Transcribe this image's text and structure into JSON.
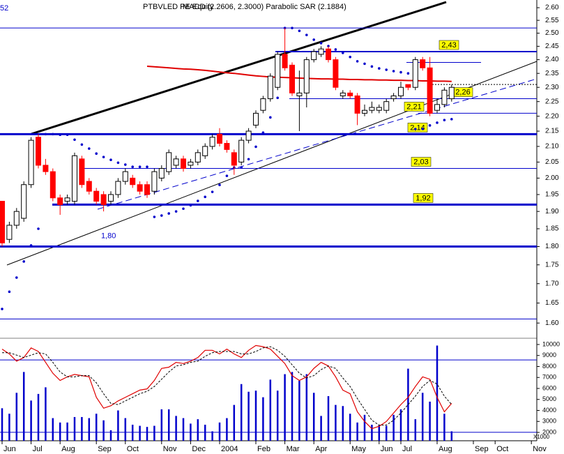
{
  "chart_data": {
    "type": "candlestick",
    "title": "PTBVLED PE Equity",
    "subtitle": "MACD (2.2606, 2.3000) Parabolic SAR (2.1884)",
    "corner_label": "52",
    "volume_unit": "X1000",
    "categories": [
      "Jun",
      null,
      null,
      null,
      "Jul",
      null,
      null,
      null,
      "Aug",
      null,
      null,
      null,
      null,
      "Sep",
      null,
      null,
      null,
      "Oct",
      null,
      null,
      null,
      null,
      "Nov",
      null,
      null,
      null,
      "Dec",
      null,
      null,
      null,
      "2004",
      null,
      null,
      null,
      null,
      "Feb",
      null,
      null,
      null,
      "Mar",
      null,
      null,
      null,
      "Apr",
      null,
      null,
      null,
      null,
      "May",
      null,
      null,
      null,
      "Jun",
      null,
      null,
      "Jul",
      null,
      null,
      null,
      null,
      "Aug",
      null,
      null,
      null,
      null,
      "Sep",
      null,
      null,
      "Oct",
      null,
      null,
      null,
      null,
      "Nov",
      null,
      null
    ],
    "open": [
      1.93,
      1.82,
      1.86,
      1.88,
      1.98,
      2.13,
      2.04,
      2.02,
      1.94,
      1.93,
      1.93,
      2.06,
      1.99,
      1.96,
      1.95,
      1.93,
      1.95,
      1.99,
      2.0,
      1.98,
      1.98,
      1.96,
      2.0,
      2.02,
      2.04,
      2.06,
      2.04,
      2.05,
      2.07,
      2.1,
      2.14,
      2.11,
      2.08,
      2.05,
      2.12,
      2.17,
      2.22,
      2.26,
      2.3,
      2.42,
      2.38,
      2.27,
      2.28,
      2.4,
      2.42,
      2.44,
      2.4,
      2.27,
      2.28,
      2.27,
      2.21,
      2.22,
      2.22,
      2.22,
      2.26,
      2.27,
      2.31,
      2.3,
      2.4,
      2.37,
      2.22,
      2.24,
      2.26,
      null,
      null,
      null,
      null,
      null,
      null,
      null,
      null,
      null,
      null,
      null,
      null,
      null
    ],
    "high": [
      1.93,
      1.87,
      1.91,
      1.99,
      2.13,
      2.14,
      2.06,
      2.03,
      1.95,
      1.95,
      2.08,
      2.07,
      2.0,
      1.97,
      1.96,
      1.96,
      2.0,
      2.03,
      2.01,
      1.99,
      1.99,
      2.03,
      2.04,
      2.09,
      2.07,
      2.07,
      2.06,
      2.09,
      2.11,
      2.14,
      2.16,
      2.12,
      2.09,
      2.13,
      2.16,
      2.22,
      2.27,
      2.35,
      2.43,
      2.52,
      2.39,
      2.36,
      2.41,
      2.44,
      2.45,
      2.45,
      2.41,
      2.29,
      2.29,
      2.28,
      2.24,
      2.25,
      2.24,
      2.26,
      2.28,
      2.32,
      2.31,
      2.41,
      2.41,
      2.41,
      2.26,
      2.3,
      2.31,
      null,
      null,
      null,
      null,
      null,
      null,
      null,
      null,
      null,
      null,
      null,
      null,
      null
    ],
    "low": [
      1.8,
      1.81,
      1.85,
      1.87,
      1.97,
      2.03,
      2.01,
      1.93,
      1.89,
      1.92,
      1.92,
      1.97,
      1.95,
      1.92,
      1.9,
      1.92,
      1.94,
      1.98,
      1.97,
      1.95,
      1.94,
      1.95,
      1.99,
      2.01,
      2.03,
      2.02,
      2.03,
      2.04,
      2.06,
      2.09,
      2.1,
      2.08,
      2.01,
      2.04,
      2.11,
      2.16,
      2.21,
      2.25,
      2.29,
      2.36,
      2.27,
      2.15,
      2.23,
      2.39,
      2.41,
      2.39,
      2.29,
      2.26,
      2.26,
      2.17,
      2.2,
      2.21,
      2.21,
      2.21,
      2.25,
      2.26,
      2.29,
      2.29,
      2.36,
      2.2,
      2.21,
      2.23,
      2.25,
      null,
      null,
      null,
      null,
      null,
      null,
      null,
      null,
      null,
      null,
      null,
      null,
      null
    ],
    "close": [
      1.81,
      1.86,
      1.9,
      1.98,
      2.12,
      2.04,
      2.02,
      1.94,
      1.92,
      1.94,
      2.07,
      1.98,
      1.96,
      1.93,
      1.92,
      1.95,
      1.99,
      2.02,
      1.98,
      1.96,
      1.95,
      2.02,
      2.03,
      2.08,
      2.06,
      2.03,
      2.05,
      2.08,
      2.1,
      2.13,
      2.11,
      2.09,
      2.04,
      2.12,
      2.15,
      2.21,
      2.26,
      2.34,
      2.42,
      2.37,
      2.28,
      2.28,
      2.4,
      2.43,
      2.44,
      2.4,
      2.3,
      2.28,
      2.27,
      2.21,
      2.22,
      2.23,
      2.23,
      2.25,
      2.27,
      2.3,
      2.3,
      2.4,
      2.37,
      2.21,
      2.24,
      2.29,
      2.3,
      null,
      null,
      null,
      null,
      null,
      null,
      null,
      null,
      null,
      null,
      null,
      null,
      null
    ],
    "up_color": "#ffffff",
    "down_color": "#ff0000",
    "sar": [
      1.635,
      1.679,
      1.716,
      1.759,
      1.803,
      1.85,
      2.14,
      2.14,
      2.138,
      2.138,
      2.122,
      2.106,
      2.093,
      2.077,
      2.066,
      2.057,
      2.048,
      2.042,
      2.035,
      2.035,
      2.035,
      1.884,
      1.888,
      1.894,
      1.9,
      1.908,
      1.918,
      1.931,
      1.943,
      1.958,
      1.979,
      2.007,
      2.033,
      2.033,
      2.059,
      2.099,
      2.145,
      2.196,
      2.263,
      2.52,
      2.52,
      2.509,
      2.493,
      2.475,
      2.462,
      2.451,
      2.438,
      2.425,
      2.41,
      2.394,
      2.385,
      2.375,
      2.368,
      2.363,
      2.358,
      2.354,
      2.35,
      2.157,
      2.157,
      2.169,
      2.178,
      2.187,
      2.19,
      null,
      null,
      null,
      null,
      null,
      null,
      null,
      null,
      null,
      null,
      null,
      null,
      null
    ],
    "sar_color": "#0000cc",
    "ma": [
      null,
      null,
      null,
      null,
      null,
      null,
      null,
      null,
      null,
      null,
      null,
      null,
      null,
      null,
      null,
      null,
      null,
      null,
      null,
      null,
      2.376,
      2.374,
      2.372,
      2.37,
      2.368,
      2.366,
      2.365,
      2.363,
      2.361,
      2.358,
      2.355,
      2.352,
      2.35,
      2.347,
      2.344,
      2.341,
      2.339,
      2.337,
      2.336,
      2.335,
      2.334,
      2.333,
      2.332,
      2.331,
      2.33,
      2.33,
      2.329,
      2.329,
      2.328,
      2.328,
      2.327,
      2.327,
      2.326,
      2.326,
      2.325,
      2.325,
      2.324,
      2.324,
      2.323,
      2.323,
      2.322,
      2.322,
      2.321,
      null,
      null,
      null,
      null,
      null,
      null,
      null,
      null,
      null,
      null,
      null,
      null,
      null
    ],
    "ma_color": "#e00000",
    "levels": [
      {
        "value": 2.52
      },
      {
        "value": 2.43,
        "label": "2,43"
      },
      {
        "value": 2.39
      },
      {
        "value": 2.31
      },
      {
        "value": 2.26,
        "label": "2,26"
      },
      {
        "value": 2.21,
        "label": "2,21"
      },
      {
        "value": 2.14,
        "label": "2,14"
      },
      {
        "value": 2.03,
        "label": "2,03"
      },
      {
        "value": 1.92,
        "label": "1,92"
      },
      {
        "value": 1.8,
        "label": "1,80"
      },
      {
        "value": 1.61
      }
    ],
    "level_color": "#0000cc",
    "ylim": [
      1.563,
      2.631
    ],
    "log_scale": true,
    "yticks": [
      {
        "value": 2.6,
        "label": "2.60"
      },
      2.55,
      {
        "value": 2.5,
        "label": "2.50"
      },
      2.45,
      {
        "value": 2.4,
        "label": "2.40"
      },
      2.35,
      {
        "value": 2.3,
        "label": "2.30"
      },
      2.25,
      {
        "value": 2.2,
        "label": "2.20"
      },
      2.15,
      {
        "value": 2.1,
        "label": "2.10"
      },
      2.05,
      {
        "value": 2,
        "label": "2.00"
      },
      1.95,
      {
        "value": 1.9,
        "label": "1.90"
      },
      1.85,
      {
        "value": 1.8,
        "label": "1.80"
      },
      1.75,
      {
        "value": 1.7,
        "label": "1.70"
      },
      1.65,
      {
        "value": 1.6,
        "label": "1.60"
      }
    ],
    "volume": [
      4200,
      3700,
      5600,
      7500,
      4900,
      5500,
      6100,
      3300,
      2900,
      2900,
      3400,
      3400,
      3300,
      3700,
      3100,
      2200,
      4000,
      3300,
      2700,
      2600,
      2500,
      2600,
      4100,
      4100,
      3500,
      3300,
      2800,
      3200,
      2700,
      2100,
      2900,
      3300,
      4500,
      6400,
      5700,
      5800,
      5200,
      6800,
      5800,
      7300,
      7500,
      6700,
      7300,
      5600,
      3500,
      5300,
      4500,
      4400,
      3700,
      2900,
      3600,
      2700,
      2700,
      2600,
      3600,
      4100,
      7800,
      3200,
      5600,
      4800,
      9900,
      3700,
      2100,
      null,
      null,
      null,
      null,
      null,
      null,
      null,
      null,
      null,
      null,
      null,
      null,
      null
    ],
    "volume_color": "#0000cc",
    "vlim": [
      1240,
      10570
    ],
    "vticks": [
      2000,
      3000,
      4000,
      5000,
      6000,
      7000,
      8000,
      9000,
      10000
    ],
    "stoch_k": [
      89,
      85,
      79,
      82,
      90,
      87,
      78,
      69,
      63,
      66,
      68,
      67,
      66,
      49,
      40,
      42,
      46,
      49,
      52,
      55,
      56,
      63,
      73,
      74,
      78,
      77,
      79,
      82,
      88,
      88,
      85,
      89,
      85,
      82,
      88,
      92,
      91,
      89,
      83,
      77,
      67,
      63,
      66,
      73,
      78,
      75,
      66,
      55,
      52,
      37,
      29,
      23,
      25,
      29,
      36,
      43,
      49,
      58,
      66,
      64,
      49,
      37,
      44,
      null,
      null,
      null,
      null,
      null,
      null,
      null,
      null,
      null,
      null,
      null,
      null,
      null
    ],
    "stoch_d": [
      86,
      86,
      84,
      82,
      84,
      86,
      85,
      78,
      70,
      66,
      66,
      67,
      67,
      61,
      52,
      44,
      43,
      46,
      49,
      52,
      54,
      58,
      64,
      70,
      75,
      76,
      78,
      79,
      83,
      86,
      87,
      87,
      87,
      85,
      85,
      87,
      90,
      91,
      88,
      83,
      76,
      69,
      65,
      67,
      72,
      75,
      73,
      65,
      58,
      48,
      39,
      30,
      26,
      26,
      30,
      36,
      43,
      50,
      58,
      63,
      60,
      50,
      43,
      null,
      null,
      null,
      null,
      null,
      null,
      null,
      null,
      null,
      null,
      null,
      null,
      null
    ],
    "stoch_k_color": "#e00000",
    "stoch_d_color": "#000000",
    "stoch_levels": [
      20,
      80
    ],
    "y2lim": [
      13,
      98
    ]
  }
}
